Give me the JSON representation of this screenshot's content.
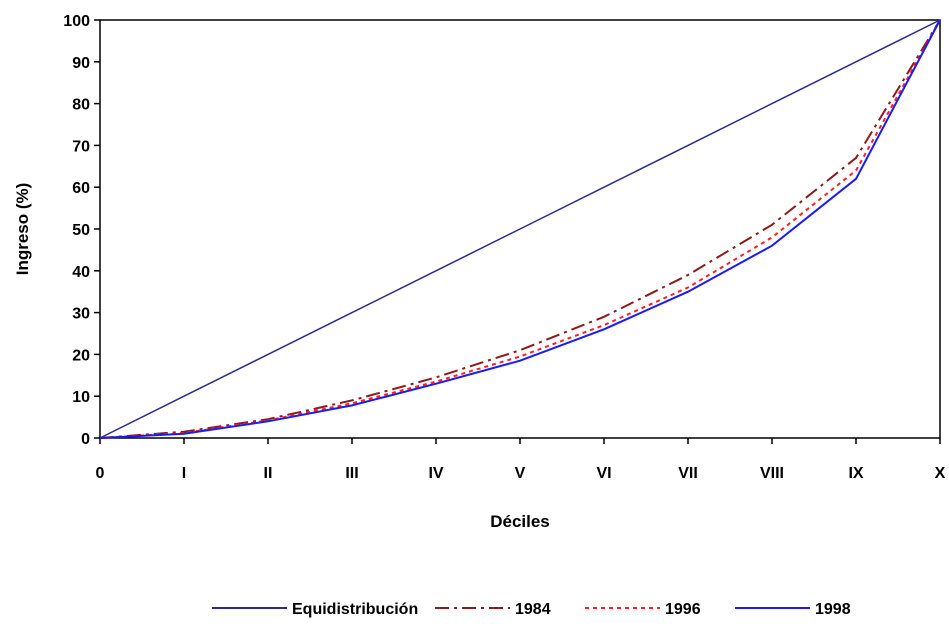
{
  "chart_data": {
    "type": "line",
    "title": "",
    "xlabel": "Déciles",
    "ylabel": "Ingreso (%)",
    "categories": [
      "0",
      "I",
      "II",
      "III",
      "IV",
      "V",
      "VI",
      "VII",
      "VIII",
      "IX",
      "X"
    ],
    "ylim": [
      0,
      100
    ],
    "yticks": [
      0,
      10,
      20,
      30,
      40,
      50,
      60,
      70,
      80,
      90,
      100
    ],
    "grid": false,
    "legend_position": "bottom",
    "series": [
      {
        "name": "Equidistribución",
        "values": [
          0,
          10,
          20,
          30,
          40,
          50,
          60,
          70,
          80,
          90,
          100
        ],
        "color": "#2b2b8f",
        "dash": "solid"
      },
      {
        "name": "1984",
        "values": [
          0,
          1.5,
          4.5,
          9,
          14.5,
          21,
          29,
          39,
          51,
          67,
          100
        ],
        "color": "#8b1a1a",
        "dash": "dashdot"
      },
      {
        "name": "1996",
        "values": [
          0,
          1.2,
          4.2,
          8.3,
          13.5,
          19.5,
          27,
          36,
          48,
          64,
          100
        ],
        "color": "#ff2020",
        "dash": "dotted"
      },
      {
        "name": "1998",
        "values": [
          0,
          1.0,
          4.0,
          7.8,
          13,
          18.5,
          26,
          35,
          46,
          62,
          100
        ],
        "color": "#1a1aff",
        "dash": "solid"
      }
    ]
  }
}
